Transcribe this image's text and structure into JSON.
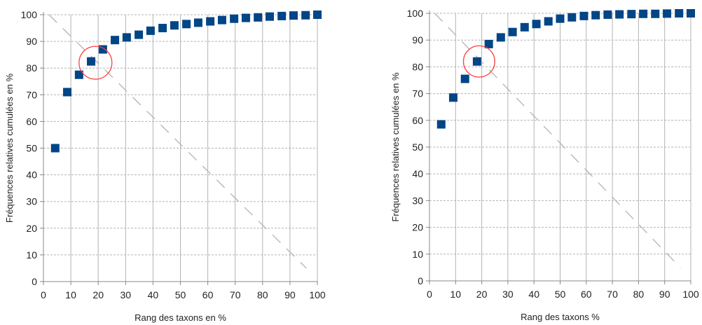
{
  "colors": {
    "marker": "#004586",
    "grid": "#b3b3b3",
    "diagonal": "#b3b3b3",
    "circle": "#ff4040",
    "axis": "#888888"
  },
  "chart_data": [
    {
      "type": "scatter",
      "xlabel": "Rang des taxons en %",
      "ylabel": "Fréquences relatives cumulées en %",
      "xlim": [
        0,
        100
      ],
      "ylim": [
        0,
        100
      ],
      "xticks": [
        "0",
        "10",
        "20",
        "30",
        "40",
        "50",
        "60",
        "70",
        "80",
        "90",
        "100"
      ],
      "yticks": [
        "0",
        "10",
        "20",
        "30",
        "40",
        "50",
        "60",
        "70",
        "80",
        "90",
        "100"
      ],
      "grid": "vertical and horizontal",
      "series": [
        {
          "marker": "square",
          "x": [
            4.3,
            8.7,
            13,
            17.4,
            21.7,
            26.1,
            30.4,
            34.8,
            39.1,
            43.5,
            47.8,
            52.2,
            56.5,
            60.9,
            65.2,
            69.6,
            73.9,
            78.3,
            82.6,
            87,
            91.3,
            95.7,
            100
          ],
          "y": [
            50,
            71,
            77.5,
            82.5,
            87,
            90.5,
            91.5,
            92.5,
            94,
            95,
            96,
            96.5,
            97,
            97.5,
            98,
            98.5,
            98.8,
            99,
            99.3,
            99.5,
            99.7,
            99.8,
            100
          ]
        }
      ],
      "reference_line": {
        "from": [
          2,
          100
        ],
        "to": [
          96,
          5
        ]
      },
      "highlight_circle": {
        "x": 19,
        "y": 82,
        "radius": 6
      }
    },
    {
      "type": "scatter",
      "xlabel": "Rang des taxons %",
      "ylabel": "Fréquences relatives cumulées en %",
      "xlim": [
        0,
        100
      ],
      "ylim": [
        0,
        100
      ],
      "xticks": [
        "0",
        "10",
        "20",
        "30",
        "40",
        "50",
        "60",
        "70",
        "80",
        "90",
        "100"
      ],
      "yticks": [
        "0",
        "10",
        "20",
        "30",
        "40",
        "50",
        "60",
        "70",
        "80",
        "90",
        "100"
      ],
      "grid": "vertical and horizontal",
      "series": [
        {
          "marker": "square",
          "x": [
            4.5,
            9.1,
            13.6,
            18.2,
            22.7,
            27.3,
            31.8,
            36.4,
            40.9,
            45.5,
            50,
            54.5,
            59.1,
            63.6,
            68.2,
            72.7,
            77.3,
            81.8,
            86.4,
            90.9,
            95.5,
            100
          ],
          "y": [
            58.5,
            68.5,
            75.5,
            82,
            88.5,
            91,
            93,
            94.8,
            96,
            97,
            98,
            98.5,
            99,
            99.3,
            99.5,
            99.6,
            99.7,
            99.8,
            99.8,
            99.9,
            100,
            100
          ]
        }
      ],
      "reference_line": {
        "from": [
          2,
          100
        ],
        "to": [
          96,
          5
        ]
      },
      "highlight_circle": {
        "x": 19,
        "y": 82,
        "radius": 6
      }
    }
  ]
}
